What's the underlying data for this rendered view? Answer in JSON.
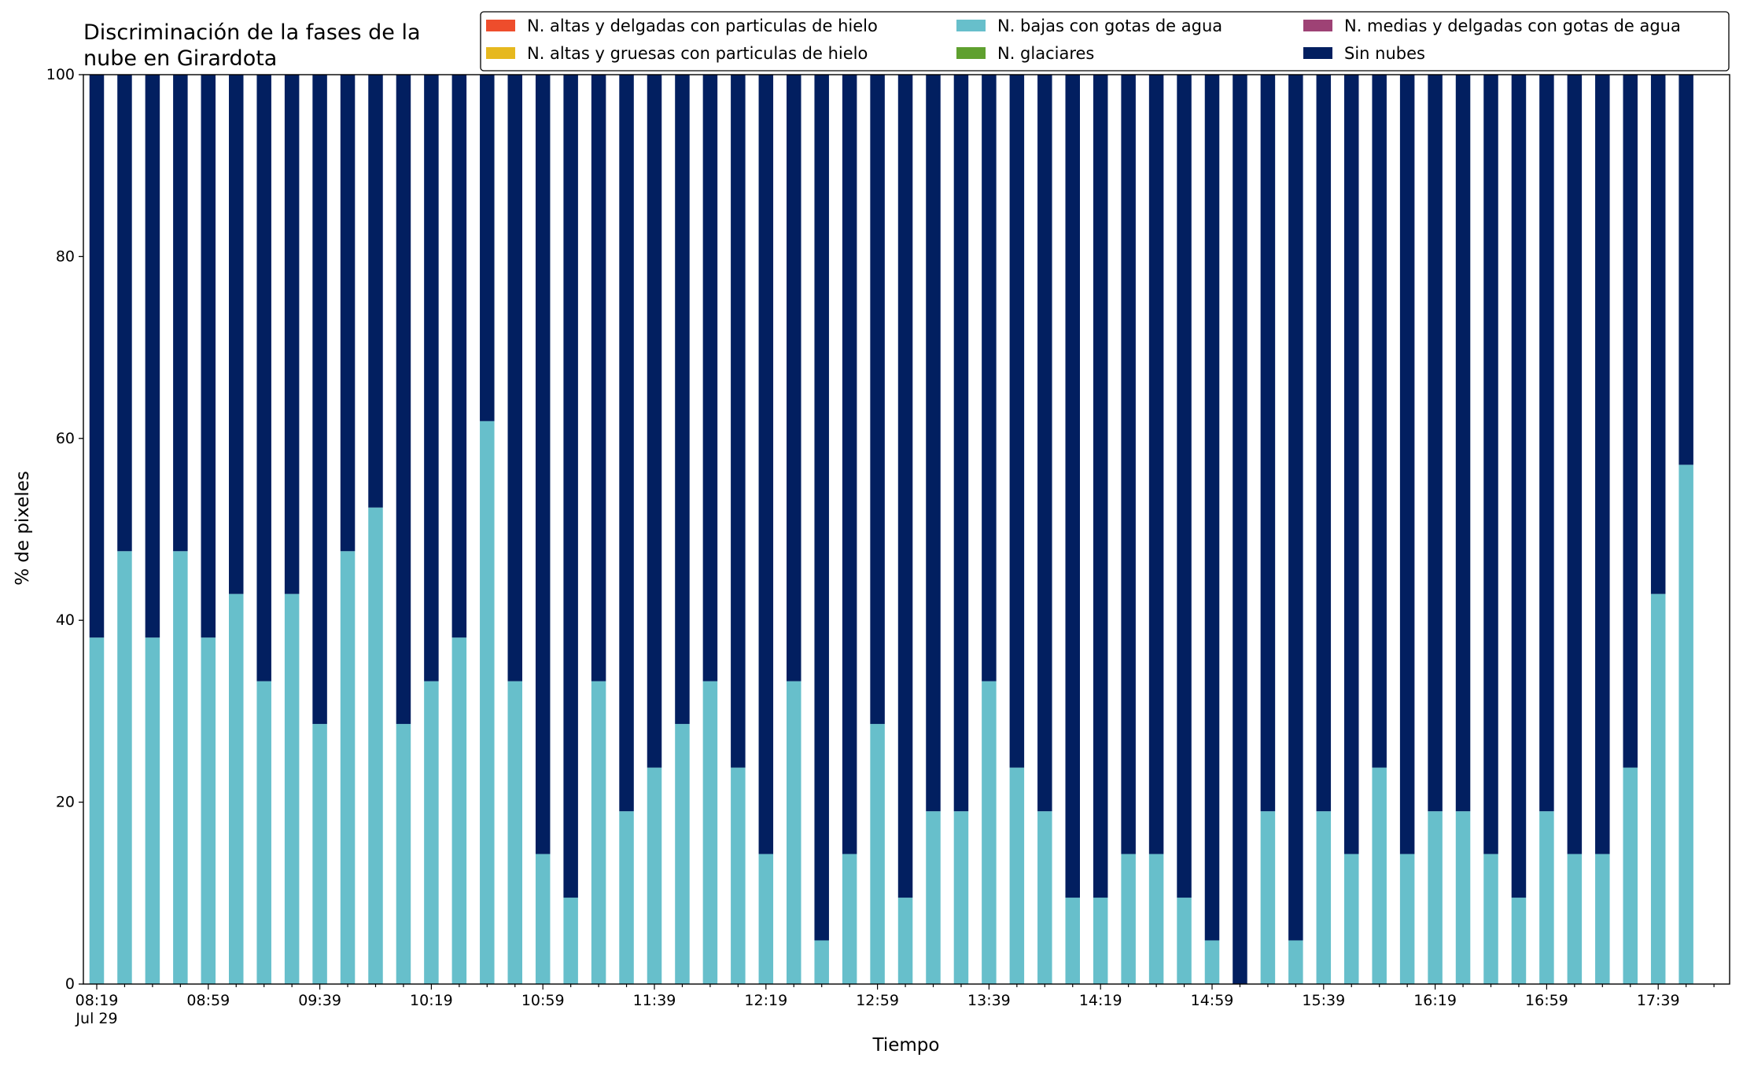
{
  "chart_data": {
    "type": "bar",
    "stacked": true,
    "title_lines": [
      "Discriminación de la fases de la",
      "nube en Girardota"
    ],
    "xlabel": "Tiempo",
    "ylabel": "% de pixeles",
    "ylim": [
      0,
      100
    ],
    "yticks": [
      0,
      20,
      40,
      60,
      80,
      100
    ],
    "grid": false,
    "legend_position": "top-right",
    "x_interval_minutes": 10,
    "x_start": "Jul 29 08:19",
    "x_end": "Jul 29 17:49",
    "x_tick_labels": [
      {
        "index": 0,
        "label": "08:19",
        "sublabel": "Jul 29"
      },
      {
        "index": 4,
        "label": "08:59"
      },
      {
        "index": 8,
        "label": "09:39"
      },
      {
        "index": 12,
        "label": "10:19"
      },
      {
        "index": 16,
        "label": "10:59"
      },
      {
        "index": 20,
        "label": "11:39"
      },
      {
        "index": 24,
        "label": "12:19"
      },
      {
        "index": 28,
        "label": "12:59"
      },
      {
        "index": 32,
        "label": "13:39"
      },
      {
        "index": 36,
        "label": "14:19"
      },
      {
        "index": 40,
        "label": "14:59"
      },
      {
        "index": 44,
        "label": "15:39"
      },
      {
        "index": 48,
        "label": "16:19"
      },
      {
        "index": 52,
        "label": "16:59"
      },
      {
        "index": 56,
        "label": "17:39"
      }
    ],
    "series": [
      {
        "name": "N. altas y delgadas con particulas de hielo",
        "color": "#ee4d2c",
        "values": [
          0,
          0,
          0,
          0,
          0,
          0,
          0,
          0,
          0,
          0,
          0,
          0,
          0,
          0,
          0,
          0,
          0,
          0,
          0,
          0,
          0,
          0,
          0,
          0,
          0,
          0,
          0,
          0,
          0,
          0,
          0,
          0,
          0,
          0,
          0,
          0,
          0,
          0,
          0,
          0,
          0,
          0,
          0,
          0,
          0,
          0,
          0,
          0,
          0,
          0,
          0,
          0,
          0,
          0,
          0,
          0,
          0,
          0
        ]
      },
      {
        "name": "N. altas y gruesas con particulas de hielo",
        "color": "#e6b81e",
        "values": [
          0,
          0,
          0,
          0,
          0,
          0,
          0,
          0,
          0,
          0,
          0,
          0,
          0,
          0,
          0,
          0,
          0,
          0,
          0,
          0,
          0,
          0,
          0,
          0,
          0,
          0,
          0,
          0,
          0,
          0,
          0,
          0,
          0,
          0,
          0,
          0,
          0,
          0,
          0,
          0,
          0,
          0,
          0,
          0,
          0,
          0,
          0,
          0,
          0,
          0,
          0,
          0,
          0,
          0,
          0,
          0,
          0,
          0
        ]
      },
      {
        "name": "N. bajas con gotas de agua",
        "color": "#67bfcb",
        "values": [
          38.1,
          47.6,
          38.1,
          47.6,
          38.1,
          42.9,
          33.3,
          42.9,
          28.6,
          47.6,
          52.4,
          28.6,
          33.3,
          38.1,
          61.9,
          33.3,
          14.3,
          9.5,
          33.3,
          19.0,
          23.8,
          28.6,
          33.3,
          23.8,
          14.3,
          33.3,
          4.8,
          14.3,
          28.6,
          9.5,
          19.0,
          19.0,
          33.3,
          23.8,
          19.0,
          9.5,
          9.5,
          14.3,
          14.3,
          9.5,
          4.8,
          0.0,
          19.0,
          4.8,
          19.0,
          14.3,
          23.8,
          14.3,
          19.0,
          19.0,
          14.3,
          9.5,
          19.0,
          14.3,
          14.3,
          23.8,
          42.9,
          57.1
        ]
      },
      {
        "name": "N. glaciares",
        "color": "#5fa02f",
        "values": [
          0,
          0,
          0,
          0,
          0,
          0,
          0,
          0,
          0,
          0,
          0,
          0,
          0,
          0,
          0,
          0,
          0,
          0,
          0,
          0,
          0,
          0,
          0,
          0,
          0,
          0,
          0,
          0,
          0,
          0,
          0,
          0,
          0,
          0,
          0,
          0,
          0,
          0,
          0,
          0,
          0,
          0,
          0,
          0,
          0,
          0,
          0,
          0,
          0,
          0,
          0,
          0,
          0,
          0,
          0,
          0,
          0,
          0
        ]
      },
      {
        "name": "N. medias y delgadas con gotas de agua",
        "color": "#9e4275",
        "values": [
          0,
          0,
          0,
          0,
          0,
          0,
          0,
          0,
          0,
          0,
          0,
          0,
          0,
          0,
          0,
          0,
          0,
          0,
          0,
          0,
          0,
          0,
          0,
          0,
          0,
          0,
          0,
          0,
          0,
          0,
          0,
          0,
          0,
          0,
          0,
          0,
          0,
          0,
          0,
          0,
          0,
          0,
          0,
          0,
          0,
          0,
          0,
          0,
          0,
          0,
          0,
          0,
          0,
          0,
          0,
          0,
          0,
          0
        ]
      },
      {
        "name": "Sin nubes",
        "color": "#021f60",
        "values": [
          61.9,
          52.4,
          61.9,
          52.4,
          61.9,
          57.1,
          66.7,
          57.1,
          71.4,
          52.4,
          47.6,
          71.4,
          66.7,
          61.9,
          38.1,
          66.7,
          85.7,
          90.5,
          66.7,
          81.0,
          76.2,
          71.4,
          66.7,
          76.2,
          85.7,
          66.7,
          95.2,
          85.7,
          71.4,
          90.5,
          81.0,
          81.0,
          66.7,
          76.2,
          81.0,
          90.5,
          90.5,
          85.7,
          85.7,
          90.5,
          95.2,
          100.0,
          81.0,
          95.2,
          81.0,
          85.7,
          76.2,
          85.7,
          81.0,
          81.0,
          85.7,
          90.5,
          81.0,
          85.7,
          85.7,
          76.2,
          57.1,
          42.9
        ]
      }
    ],
    "legend_layout": {
      "columns": [
        [
          "N. altas y delgadas con particulas de hielo",
          "N. altas y gruesas con particulas de hielo"
        ],
        [
          "N. bajas con gotas de agua",
          "N. glaciares"
        ],
        [
          "N. medias y delgadas con gotas de agua",
          "Sin nubes"
        ]
      ]
    }
  }
}
